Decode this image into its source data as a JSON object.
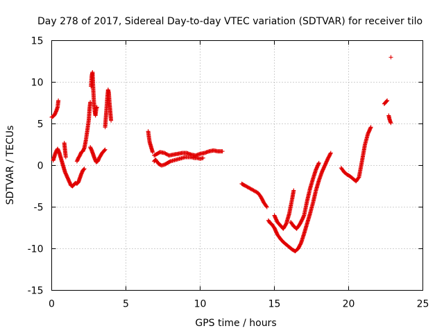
{
  "chart_data": {
    "type": "scatter",
    "title": "Day 278 of 2017, Sidereal Day-to-day VTEC variation (SDTVAR) for receiver tilo",
    "xlabel": "GPS time / hours",
    "ylabel": "SDTVAR / TECUs",
    "xlim": [
      0,
      25
    ],
    "ylim": [
      -15,
      15
    ],
    "xticks": [
      "0",
      "5",
      "10",
      "15",
      "20",
      "25"
    ],
    "yticks": [
      "-15",
      "-10",
      "-5",
      "0",
      "5",
      "10",
      "15"
    ],
    "grid": true,
    "marker": "+",
    "series_color": "#e00000",
    "tracks": [
      [
        [
          0.0,
          5.8
        ],
        [
          0.1,
          5.9
        ],
        [
          0.2,
          6.1
        ],
        [
          0.3,
          6.5
        ],
        [
          0.4,
          7.0
        ],
        [
          0.45,
          7.8
        ]
      ],
      [
        [
          0.1,
          0.6
        ],
        [
          0.2,
          1.2
        ],
        [
          0.3,
          1.7
        ],
        [
          0.4,
          2.0
        ],
        [
          0.5,
          1.6
        ],
        [
          0.6,
          1.0
        ],
        [
          0.7,
          0.4
        ],
        [
          0.8,
          -0.2
        ],
        [
          0.9,
          -0.8
        ],
        [
          1.0,
          -1.2
        ],
        [
          1.1,
          -1.6
        ],
        [
          1.2,
          -2.0
        ],
        [
          1.3,
          -2.4
        ],
        [
          1.4,
          -2.5
        ],
        [
          1.5,
          -2.3
        ],
        [
          1.6,
          -2.1
        ],
        [
          1.7,
          -2.2
        ],
        [
          1.8,
          -2.0
        ],
        [
          1.9,
          -1.5
        ],
        [
          2.0,
          -1.0
        ],
        [
          2.1,
          -0.6
        ],
        [
          2.2,
          -0.4
        ]
      ],
      [
        [
          0.85,
          2.7
        ],
        [
          0.9,
          1.8
        ],
        [
          0.95,
          1.0
        ]
      ],
      [
        [
          1.7,
          0.5
        ],
        [
          1.8,
          0.9
        ],
        [
          1.9,
          1.2
        ],
        [
          2.0,
          1.6
        ],
        [
          2.1,
          1.7
        ],
        [
          2.2,
          2.1
        ],
        [
          2.3,
          3.0
        ],
        [
          2.4,
          4.2
        ],
        [
          2.5,
          5.5
        ],
        [
          2.55,
          6.8
        ],
        [
          2.6,
          7.6
        ]
      ],
      [
        [
          2.65,
          9.5
        ],
        [
          2.7,
          10.8
        ],
        [
          2.75,
          11.2
        ],
        [
          2.8,
          9.2
        ],
        [
          2.85,
          7.5
        ],
        [
          2.9,
          6.5
        ],
        [
          2.95,
          6.0
        ],
        [
          3.0,
          6.8
        ],
        [
          3.05,
          7.0
        ]
      ],
      [
        [
          2.6,
          2.2
        ],
        [
          2.7,
          1.8
        ],
        [
          2.8,
          1.3
        ],
        [
          2.9,
          0.8
        ],
        [
          3.0,
          0.4
        ],
        [
          3.1,
          0.5
        ],
        [
          3.2,
          0.9
        ],
        [
          3.3,
          1.2
        ],
        [
          3.4,
          1.5
        ],
        [
          3.5,
          1.7
        ],
        [
          3.6,
          1.9
        ]
      ],
      [
        [
          3.6,
          4.6
        ],
        [
          3.65,
          5.8
        ],
        [
          3.7,
          7.0
        ],
        [
          3.75,
          8.2
        ],
        [
          3.8,
          9.1
        ],
        [
          3.85,
          8.7
        ],
        [
          3.9,
          7.4
        ],
        [
          3.95,
          6.4
        ],
        [
          4.0,
          5.4
        ]
      ],
      [
        [
          6.5,
          4.1
        ],
        [
          6.55,
          3.4
        ],
        [
          6.6,
          2.8
        ],
        [
          6.7,
          2.2
        ],
        [
          6.8,
          1.6
        ]
      ],
      [
        [
          6.9,
          0.5
        ],
        [
          7.0,
          0.7
        ],
        [
          7.2,
          0.2
        ],
        [
          7.4,
          0.0
        ],
        [
          7.6,
          0.1
        ],
        [
          7.8,
          0.3
        ],
        [
          8.0,
          0.5
        ],
        [
          8.2,
          0.6
        ],
        [
          8.4,
          0.7
        ],
        [
          8.6,
          0.8
        ],
        [
          8.8,
          0.9
        ],
        [
          9.0,
          1.0
        ],
        [
          9.2,
          1.0
        ],
        [
          9.4,
          1.0
        ],
        [
          9.6,
          0.9
        ],
        [
          9.8,
          0.9
        ],
        [
          10.0,
          0.8
        ],
        [
          10.2,
          0.9
        ]
      ],
      [
        [
          6.9,
          1.2
        ],
        [
          7.1,
          1.4
        ],
        [
          7.3,
          1.6
        ],
        [
          7.6,
          1.5
        ],
        [
          7.9,
          1.2
        ],
        [
          8.2,
          1.3
        ],
        [
          8.5,
          1.4
        ],
        [
          8.8,
          1.5
        ],
        [
          9.1,
          1.5
        ],
        [
          9.4,
          1.3
        ],
        [
          9.7,
          1.2
        ],
        [
          10.0,
          1.4
        ],
        [
          10.3,
          1.5
        ],
        [
          10.6,
          1.7
        ],
        [
          10.9,
          1.8
        ],
        [
          11.2,
          1.7
        ],
        [
          11.5,
          1.7
        ]
      ],
      [
        [
          12.8,
          -2.2
        ],
        [
          13.0,
          -2.4
        ],
        [
          13.3,
          -2.7
        ],
        [
          13.6,
          -3.0
        ],
        [
          13.9,
          -3.3
        ],
        [
          14.1,
          -3.8
        ],
        [
          14.3,
          -4.5
        ],
        [
          14.5,
          -5.0
        ]
      ],
      [
        [
          14.6,
          -6.6
        ],
        [
          14.7,
          -6.9
        ],
        [
          14.8,
          -7.0
        ],
        [
          15.0,
          -7.5
        ],
        [
          15.2,
          -8.3
        ],
        [
          15.4,
          -8.8
        ],
        [
          15.6,
          -9.2
        ],
        [
          15.8,
          -9.5
        ],
        [
          16.0,
          -9.8
        ],
        [
          16.2,
          -10.1
        ],
        [
          16.4,
          -10.3
        ],
        [
          16.6,
          -10.0
        ],
        [
          16.8,
          -9.3
        ],
        [
          17.0,
          -8.2
        ],
        [
          17.2,
          -7.0
        ],
        [
          17.4,
          -5.8
        ],
        [
          17.6,
          -4.5
        ],
        [
          17.8,
          -3.0
        ],
        [
          18.0,
          -1.8
        ],
        [
          18.2,
          -0.8
        ],
        [
          18.4,
          0.0
        ],
        [
          18.6,
          0.8
        ],
        [
          18.8,
          1.5
        ]
      ],
      [
        [
          15.0,
          -6.0
        ],
        [
          15.2,
          -6.8
        ],
        [
          15.4,
          -7.2
        ],
        [
          15.6,
          -7.6
        ],
        [
          15.8,
          -7.0
        ],
        [
          16.0,
          -5.8
        ],
        [
          16.2,
          -4.0
        ],
        [
          16.3,
          -3.0
        ]
      ],
      [
        [
          16.1,
          -6.8
        ],
        [
          16.3,
          -7.3
        ],
        [
          16.5,
          -7.6
        ],
        [
          16.7,
          -7.1
        ],
        [
          16.9,
          -6.4
        ],
        [
          17.0,
          -6.0
        ],
        [
          17.2,
          -4.3
        ],
        [
          17.4,
          -2.8
        ],
        [
          17.6,
          -1.6
        ],
        [
          17.8,
          -0.5
        ],
        [
          18.0,
          0.3
        ]
      ],
      [
        [
          19.5,
          -0.3
        ],
        [
          19.7,
          -0.8
        ],
        [
          19.9,
          -1.1
        ],
        [
          20.1,
          -1.3
        ],
        [
          20.3,
          -1.6
        ],
        [
          20.5,
          -1.9
        ],
        [
          20.7,
          -1.4
        ],
        [
          20.9,
          0.5
        ],
        [
          21.1,
          2.5
        ],
        [
          21.3,
          3.8
        ],
        [
          21.5,
          4.6
        ]
      ],
      [
        [
          22.4,
          7.4
        ],
        [
          22.5,
          7.6
        ],
        [
          22.6,
          7.8
        ]
      ],
      [
        [
          22.7,
          6.0
        ],
        [
          22.75,
          5.6
        ],
        [
          22.8,
          5.3
        ],
        [
          22.85,
          5.1
        ]
      ],
      [
        [
          22.85,
          13.0
        ]
      ]
    ]
  }
}
